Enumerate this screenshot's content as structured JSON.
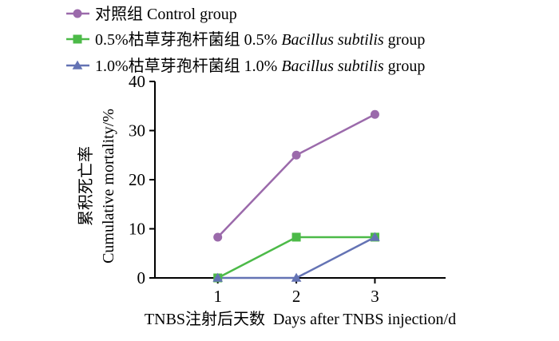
{
  "chart_data": {
    "type": "line",
    "x": [
      1,
      2,
      3
    ],
    "xlabel": "TNBS注射后天数  Days after TNBS injection/d",
    "ylabel_cn": "累积死亡率",
    "ylabel_en": "Cumulative mortality/%",
    "xlim": [
      0.2,
      3.9
    ],
    "ylim": [
      0,
      40
    ],
    "xticks": [
      1,
      2,
      3
    ],
    "yticks": [
      0,
      10,
      20,
      30,
      40
    ],
    "grid": false,
    "legend_position": "top",
    "series": [
      {
        "name_cn": "对照组 Control group",
        "name_parts": [
          "对照组 Control group"
        ],
        "color": "#9b6aab",
        "marker": "circle",
        "values": [
          8.3,
          25.0,
          33.3
        ]
      },
      {
        "name_cn": "0.5%枯草芽孢杆菌组 0.5% ",
        "name_italic": "Bacillus subtilis",
        "name_tail": " group",
        "color": "#4cba48",
        "marker": "square",
        "values": [
          0,
          8.3,
          8.3
        ]
      },
      {
        "name_cn": "1.0%枯草芽孢杆菌组 1.0% ",
        "name_italic": "Bacillus subtilis",
        "name_tail": " group",
        "color": "#6473b4",
        "marker": "triangle",
        "values": [
          0,
          0,
          8.3
        ]
      }
    ]
  }
}
